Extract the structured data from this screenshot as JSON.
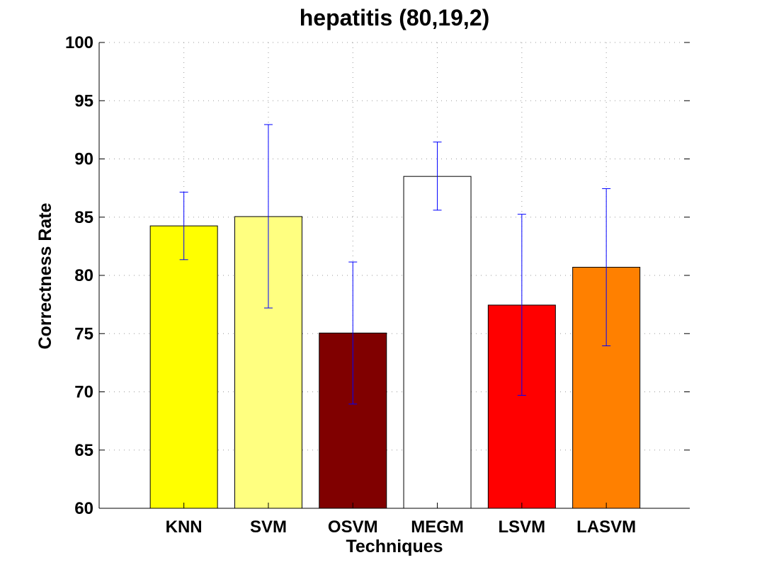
{
  "chart_data": {
    "type": "bar",
    "title": "hepatitis (80,19,2)",
    "xlabel": "Techniques",
    "ylabel": "Correctness Rate",
    "ylim": [
      60,
      100
    ],
    "yticks": [
      60,
      65,
      70,
      75,
      80,
      85,
      90,
      95,
      100
    ],
    "grid": true,
    "categories": [
      "KNN",
      "SVM",
      "OSVM",
      "MEGM",
      "LSVM",
      "LASVM"
    ],
    "values": [
      84.25,
      85.05,
      75.05,
      88.5,
      77.45,
      80.7
    ],
    "error_low": [
      81.35,
      77.2,
      68.95,
      85.6,
      69.7,
      73.95
    ],
    "error_high": [
      87.15,
      92.95,
      81.15,
      91.45,
      85.25,
      87.45
    ],
    "bar_colors": [
      "#ffff00",
      "#ffff80",
      "#800000",
      "#ffffff",
      "#ff0000",
      "#ff8000"
    ],
    "error_color": "#0000ff"
  }
}
